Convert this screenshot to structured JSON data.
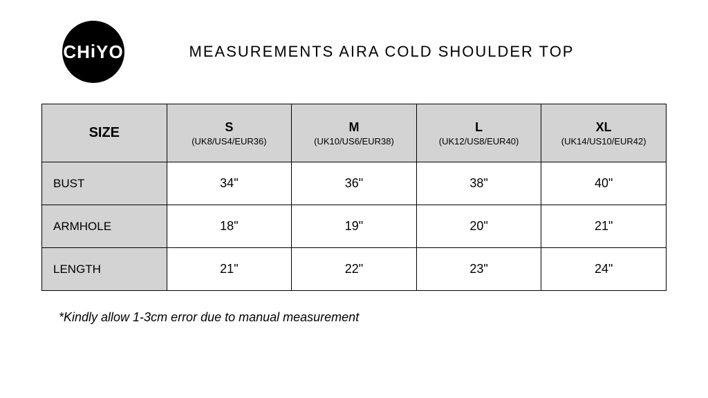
{
  "logo_text": "CHiYO",
  "title": "MEASUREMENTS AIRA COLD SHOULDER TOP",
  "table": {
    "size_header": "SIZE",
    "columns": [
      {
        "label": "S",
        "sub": "(UK8/US4/EUR36)"
      },
      {
        "label": "M",
        "sub": "(UK10/US6/EUR38)"
      },
      {
        "label": "L",
        "sub": "(UK12/US8/EUR40)"
      },
      {
        "label": "XL",
        "sub": "(UK14/US10/EUR42)"
      }
    ],
    "rows": [
      {
        "label": "BUST",
        "values": [
          "34\"",
          "36\"",
          "38\"",
          "40\""
        ]
      },
      {
        "label": "ARMHOLE",
        "values": [
          "18\"",
          "19\"",
          "20\"",
          "21\""
        ]
      },
      {
        "label": "LENGTH",
        "values": [
          "21\"",
          "22\"",
          "23\"",
          "24\""
        ]
      }
    ]
  },
  "footnote": "*Kindly allow 1-3cm error due to manual measurement",
  "colors": {
    "header_bg": "#d3d3d3",
    "border": "#000000",
    "page_bg": "#ffffff",
    "logo_bg": "#000000",
    "logo_fg": "#ffffff"
  }
}
